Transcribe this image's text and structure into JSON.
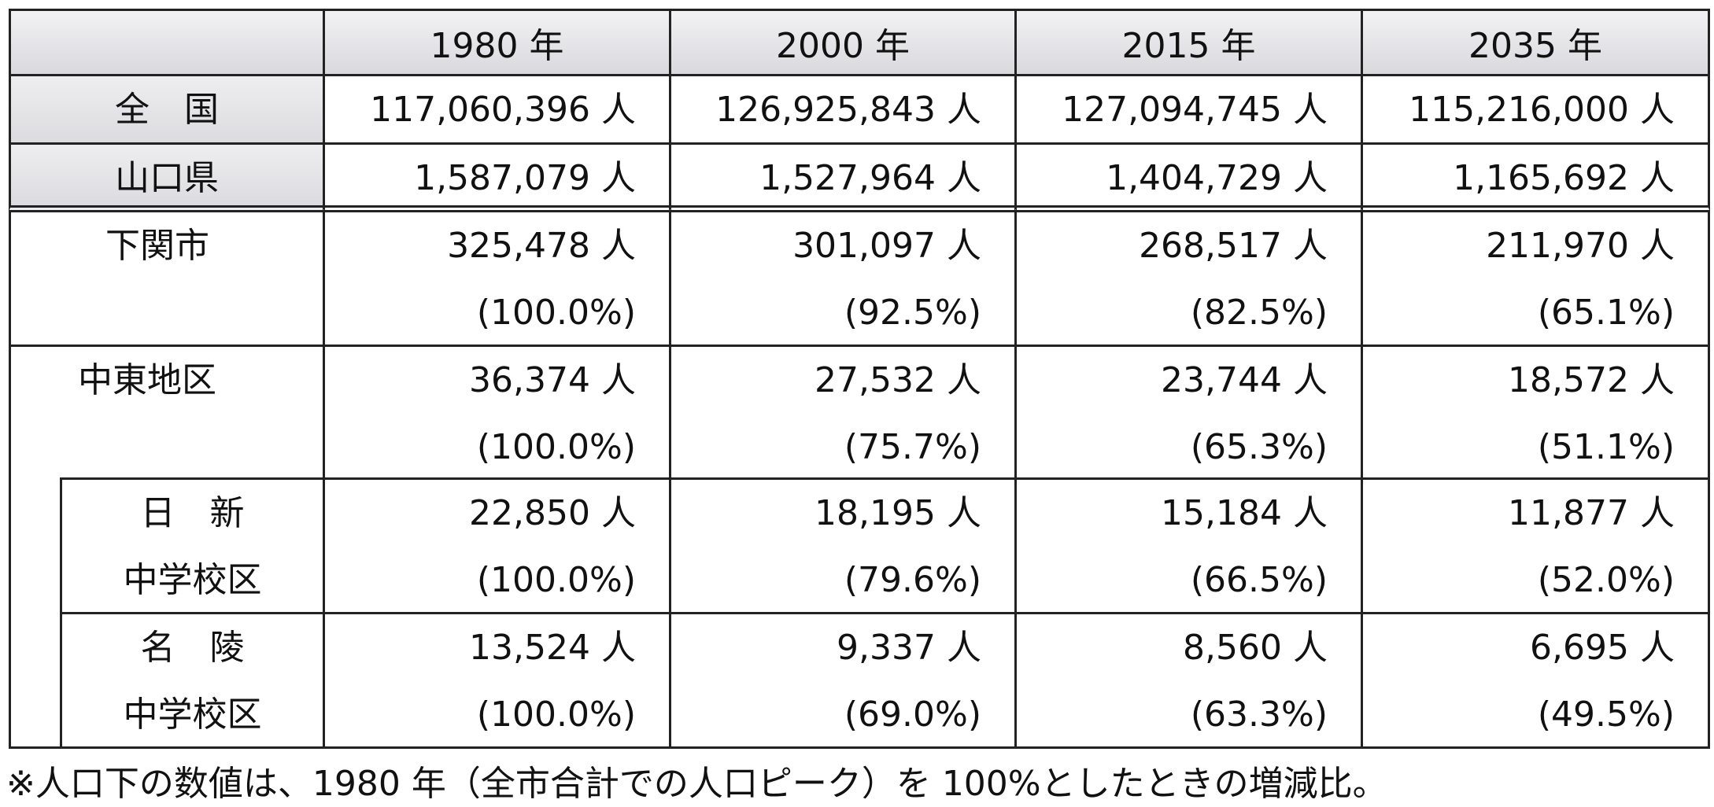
{
  "table": {
    "columns": [
      "1980 年",
      "2000 年",
      "2015 年",
      "2035 年"
    ],
    "rows": [
      {
        "label": [
          "全　国"
        ],
        "values": [
          "117,060,396 人",
          "126,925,843 人",
          "127,094,745 人",
          "115,216,000 人"
        ]
      },
      {
        "label": [
          "山口県"
        ],
        "values": [
          "1,587,079 人",
          "1,527,964 人",
          "1,404,729 人",
          "1,165,692 人"
        ]
      },
      {
        "label": [
          "下関市"
        ],
        "values": [
          "325,478 人",
          "301,097 人",
          "268,517 人",
          "211,970 人"
        ],
        "ratios": [
          "(100.0%)",
          "(92.5%)",
          "(82.5%)",
          "(65.1%)"
        ]
      },
      {
        "label": [
          "中東地区"
        ],
        "values": [
          "36,374 人",
          "27,532 人",
          "23,744 人",
          "18,572 人"
        ],
        "ratios": [
          "(100.0%)",
          "(75.7%)",
          "(65.3%)",
          "(51.1%)"
        ]
      },
      {
        "label": [
          "日　新",
          "中学校区"
        ],
        "values": [
          "22,850 人",
          "18,195 人",
          "15,184 人",
          "11,877 人"
        ],
        "ratios": [
          "(100.0%)",
          "(79.6%)",
          "(66.5%)",
          "(52.0%)"
        ]
      },
      {
        "label": [
          "名　陵",
          "中学校区"
        ],
        "values": [
          "13,524 人",
          "9,337 人",
          "8,560 人",
          "6,695 人"
        ],
        "ratios": [
          "(100.0%)",
          "(69.0%)",
          "(63.3%)",
          "(49.5%)"
        ]
      }
    ]
  },
  "note": "※人口下の数値は、1980 年（全市合計での人口ピーク）を 100%としたときの増減比。"
}
